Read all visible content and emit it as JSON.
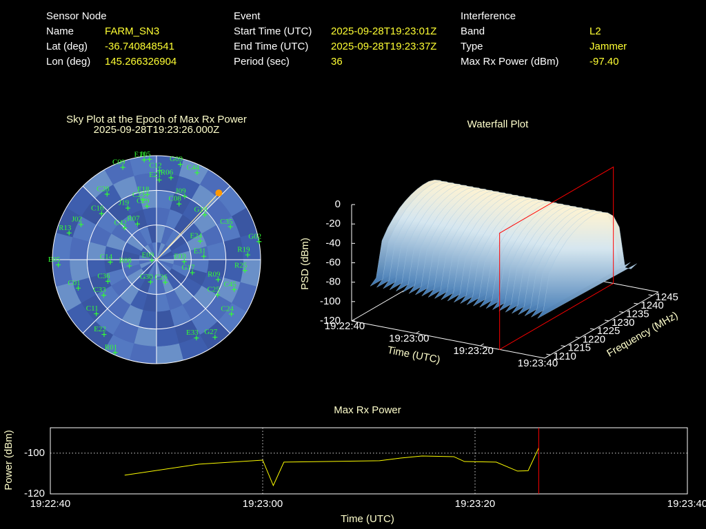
{
  "header": {
    "sensor_node": {
      "title": "Sensor Node",
      "rows": [
        [
          "Name",
          "FARM_SN3"
        ],
        [
          "Lat (deg)",
          "-36.740848541"
        ],
        [
          "Lon (deg)",
          "145.266326904"
        ]
      ]
    },
    "event": {
      "title": "Event",
      "rows": [
        [
          "Start Time (UTC)",
          "2025-09-28T19:23:01Z"
        ],
        [
          "End Time (UTC)",
          "2025-09-28T19:23:37Z"
        ],
        [
          "Period (sec)",
          "36"
        ]
      ]
    },
    "interference": {
      "title": "Interference",
      "rows": [
        [
          "Band",
          "L2"
        ],
        [
          "Type",
          "Jammer"
        ],
        [
          "Max Rx Power (dBm)",
          "-97.40"
        ]
      ]
    }
  },
  "chart_data": [
    {
      "type": "skyplot",
      "title": "Sky Plot at the Epoch of Max Rx Power",
      "subtitle": "2025-09-28T19:23:26.000Z",
      "elevation_rings": [
        0,
        30,
        60
      ],
      "azimuth_spokes": [
        0,
        45,
        90,
        135,
        180,
        225,
        270,
        315
      ],
      "satellite_color": "#33ff33",
      "interference_color": "#ff9900",
      "satellites": [
        {
          "name": "C09",
          "azimuth": 340,
          "elevation": 5
        },
        {
          "name": "E11",
          "azimuth": 353,
          "elevation": 3
        },
        {
          "name": "J05",
          "azimuth": 356,
          "elevation": 3
        },
        {
          "name": "C12",
          "azimuth": 2,
          "elevation": 13
        },
        {
          "name": "E21",
          "azimuth": 2,
          "elevation": 21
        },
        {
          "name": "R06",
          "azimuth": 10,
          "elevation": 18
        },
        {
          "name": "G09",
          "azimuth": 14,
          "elevation": 5
        },
        {
          "name": "C44",
          "azimuth": 25,
          "elevation": 7
        },
        {
          "name": "C28",
          "azimuth": 323,
          "elevation": 19
        },
        {
          "name": "E18",
          "azimuth": 352,
          "elevation": 33
        },
        {
          "name": "C23",
          "azimuth": 347,
          "elevation": 37
        },
        {
          "name": "J09",
          "azimuth": 24,
          "elevation": 30
        },
        {
          "name": "C08",
          "azimuth": 22,
          "elevation": 38
        },
        {
          "name": "G19",
          "azimuth": 47,
          "elevation": 33
        },
        {
          "name": "C35",
          "azimuth": 66,
          "elevation": 20
        },
        {
          "name": "G02",
          "azimuth": 80,
          "elevation": 0
        },
        {
          "name": "R19",
          "azimuth": 87,
          "elevation": 11
        },
        {
          "name": "R25",
          "azimuth": 97,
          "elevation": 13
        },
        {
          "name": "E24",
          "azimuth": 67,
          "elevation": 49
        },
        {
          "name": "E31",
          "azimuth": 86,
          "elevation": 49
        },
        {
          "name": "E03",
          "azimuth": 94,
          "elevation": 66
        },
        {
          "name": "G17",
          "azimuth": 110,
          "elevation": 57
        },
        {
          "name": "R09",
          "azimuth": 108,
          "elevation": 34
        },
        {
          "name": "C45",
          "azimuth": 111,
          "elevation": 18
        },
        {
          "name": "C25",
          "azimuth": 120,
          "elevation": 29
        },
        {
          "name": "C24",
          "azimuth": 126,
          "elevation": 10
        },
        {
          "name": "E33",
          "azimuth": 153,
          "elevation": 14
        },
        {
          "name": "G27",
          "azimuth": 143,
          "elevation": 6
        },
        {
          "name": "C26",
          "azimuth": 159,
          "elevation": 69
        },
        {
          "name": "G30",
          "azimuth": 195,
          "elevation": 70
        },
        {
          "name": "E09",
          "azimuth": 262,
          "elevation": 86
        },
        {
          "name": "R08",
          "azimuth": 257,
          "elevation": 66
        },
        {
          "name": "C14",
          "azimuth": 267,
          "elevation": 50
        },
        {
          "name": "C36",
          "azimuth": 246,
          "elevation": 44
        },
        {
          "name": "C33",
          "azimuth": 236,
          "elevation": 35
        },
        {
          "name": "C01",
          "azimuth": 250,
          "elevation": 18
        },
        {
          "name": "E22",
          "azimuth": 215,
          "elevation": 11
        },
        {
          "name": "R01",
          "azimuth": 204,
          "elevation": 2
        },
        {
          "name": "C11",
          "azimuth": 228,
          "elevation": 20
        },
        {
          "name": "E05",
          "azimuth": 267,
          "elevation": 5
        },
        {
          "name": "R13",
          "azimuth": 287,
          "elevation": 11
        },
        {
          "name": "J02",
          "azimuth": 295,
          "elevation": 18
        },
        {
          "name": "C16",
          "azimuth": 310,
          "elevation": 28
        },
        {
          "name": "C42",
          "azimuth": 315,
          "elevation": 51
        },
        {
          "name": "R07",
          "azimuth": 332,
          "elevation": 55
        },
        {
          "name": "J19",
          "azimuth": 331,
          "elevation": 39
        },
        {
          "name": "C29",
          "azimuth": 350,
          "elevation": 43
        }
      ],
      "interference": {
        "azimuth": 43,
        "elevation": 11
      }
    },
    {
      "type": "surface",
      "title": "Waterfall Plot",
      "xlabel": "Time (UTC)",
      "ylabel": "Frequency (MHz)",
      "zlabel": "PSD (dBm)",
      "xlim": [
        "19:22:40",
        "19:23:40"
      ],
      "xticks": [
        "19:22:40",
        "19:23:00",
        "19:23:20",
        "19:23:40"
      ],
      "ylim": [
        1208,
        1247
      ],
      "yticks": [
        1210,
        1215,
        1220,
        1225,
        1230,
        1235,
        1240,
        1245
      ],
      "zlim": [
        -120,
        0
      ],
      "zticks": [
        0,
        -20,
        -40,
        -60,
        -80,
        -100,
        -120
      ],
      "frequencies": [
        1210,
        1212,
        1214,
        1216,
        1218,
        1220,
        1222,
        1224,
        1226,
        1228,
        1230,
        1232,
        1234,
        1236,
        1238,
        1240,
        1242,
        1244
      ],
      "values": [
        -85,
        -80,
        -45,
        -35,
        -28,
        -22,
        -18,
        -15,
        -13,
        -12,
        -12,
        -14,
        -18,
        -25,
        -40,
        -85,
        -90,
        -88
      ],
      "marker": "19:23:26",
      "marker_color": "#ff0000"
    },
    {
      "type": "line",
      "title": "Max Rx Power",
      "xlabel": "Time (UTC)",
      "ylabel": "Power (dBm)",
      "x": [
        "19:22:47",
        "19:22:54",
        "19:23:00",
        "19:23:01",
        "19:23:02",
        "19:23:11",
        "19:23:13",
        "19:23:15",
        "19:23:18",
        "19:23:19",
        "19:23:22",
        "19:23:24",
        "19:23:25",
        "19:23:26"
      ],
      "values": [
        -110.8,
        -105.4,
        -103.4,
        -115.9,
        -104.4,
        -103.7,
        -102.4,
        -101.4,
        -101.7,
        -104.1,
        -104.4,
        -108.8,
        -108.6,
        -97.4
      ],
      "color": "#ffff00",
      "xlim": [
        "19:22:40",
        "19:23:40"
      ],
      "xticks": [
        "19:22:40",
        "19:23:00",
        "19:23:20",
        "19:23:40"
      ],
      "ylim": [
        -120,
        -87.5
      ],
      "yticks": [
        -120,
        -100
      ],
      "grid": true,
      "marker": "19:23:26",
      "marker_color": "#ff0000"
    }
  ]
}
